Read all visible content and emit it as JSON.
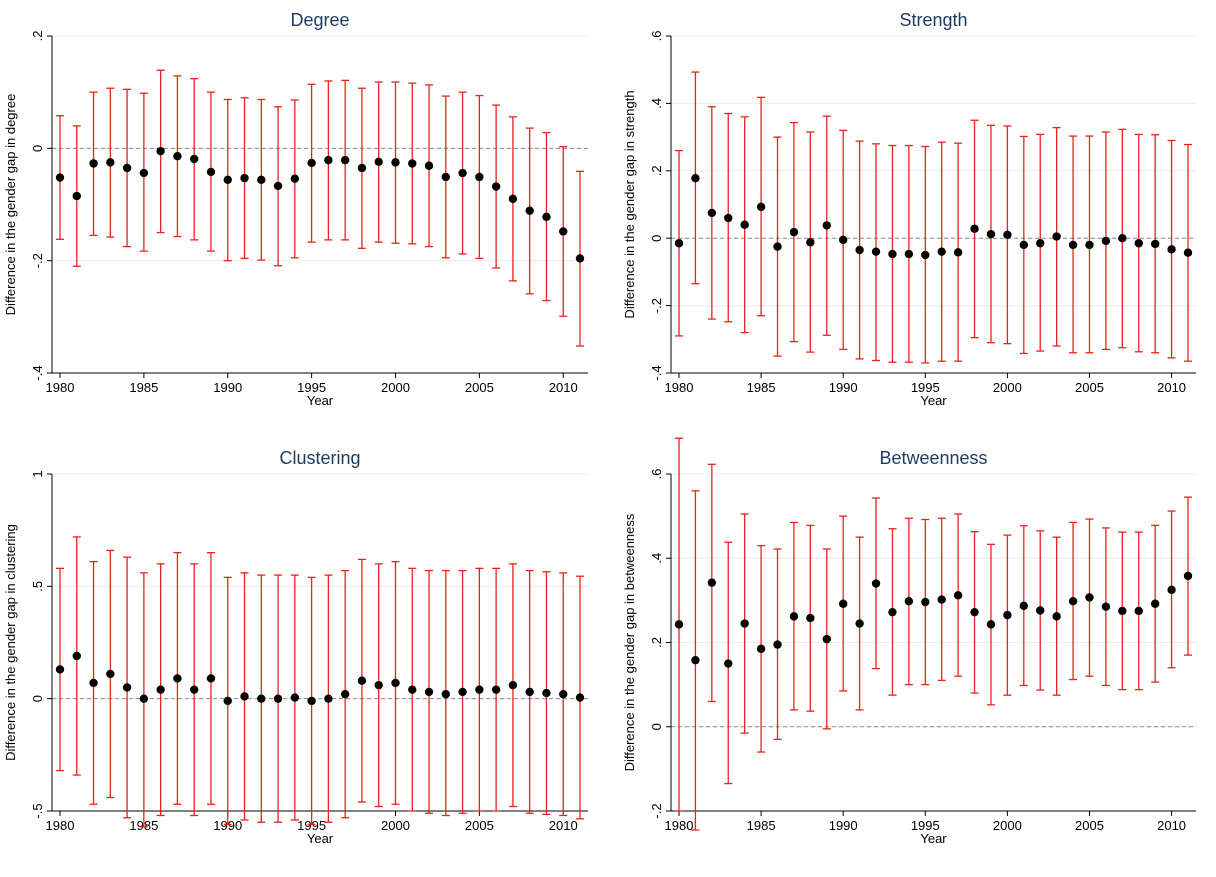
{
  "colors": {
    "ci": "#e8231b",
    "point": "#000000",
    "grid": "#ececec",
    "zero_line": "#8c8c8c",
    "title": "#1e3a5f"
  },
  "chart_data": [
    {
      "type": "scatter",
      "title": "Degree",
      "xlabel": "Year",
      "ylabel": "Difference in the gender gap in degree",
      "xlim": [
        1980,
        2011
      ],
      "ylim": [
        -0.4,
        0.2
      ],
      "xticks": [
        1980,
        1985,
        1990,
        1995,
        2000,
        2005,
        2010
      ],
      "yticks": [
        -0.4,
        -0.2,
        0,
        0.2
      ],
      "ytick_labels": [
        "-.4",
        "-.2",
        "0",
        ".2"
      ],
      "reference_line": 0,
      "grid": true,
      "error_bars": "confidence interval",
      "x": [
        1980,
        1981,
        1982,
        1983,
        1984,
        1985,
        1986,
        1987,
        1988,
        1989,
        1990,
        1991,
        1992,
        1993,
        1994,
        1995,
        1996,
        1997,
        1998,
        1999,
        2000,
        2001,
        2002,
        2003,
        2004,
        2005,
        2006,
        2007,
        2008,
        2009,
        2010,
        2011
      ],
      "y": [
        -0.052,
        -0.085,
        -0.027,
        -0.025,
        -0.035,
        -0.044,
        -0.005,
        -0.014,
        -0.019,
        -0.042,
        -0.056,
        -0.053,
        -0.056,
        -0.067,
        -0.054,
        -0.026,
        -0.021,
        -0.021,
        -0.035,
        -0.024,
        -0.025,
        -0.027,
        -0.031,
        -0.051,
        -0.044,
        -0.051,
        -0.068,
        -0.09,
        -0.111,
        -0.122,
        -0.148,
        -0.196
      ],
      "lower": [
        -0.162,
        -0.21,
        -0.155,
        -0.158,
        -0.175,
        -0.183,
        -0.15,
        -0.157,
        -0.163,
        -0.183,
        -0.2,
        -0.196,
        -0.199,
        -0.209,
        -0.195,
        -0.167,
        -0.163,
        -0.163,
        -0.178,
        -0.167,
        -0.169,
        -0.17,
        -0.175,
        -0.195,
        -0.188,
        -0.196,
        -0.213,
        -0.236,
        -0.259,
        -0.271,
        -0.299,
        -0.352
      ],
      "upper": [
        0.058,
        0.04,
        0.1,
        0.107,
        0.105,
        0.098,
        0.139,
        0.129,
        0.124,
        0.1,
        0.087,
        0.09,
        0.087,
        0.074,
        0.086,
        0.114,
        0.12,
        0.121,
        0.107,
        0.118,
        0.118,
        0.116,
        0.113,
        0.093,
        0.1,
        0.094,
        0.077,
        0.056,
        0.036,
        0.028,
        0.003,
        -0.041
      ]
    },
    {
      "type": "scatter",
      "title": "Strength",
      "xlabel": "Year",
      "ylabel": "Difference in the gender gap in strength",
      "xlim": [
        1980,
        2011
      ],
      "ylim": [
        -0.4,
        0.6
      ],
      "xticks": [
        1980,
        1985,
        1990,
        1995,
        2000,
        2005,
        2010
      ],
      "yticks": [
        -0.4,
        -0.2,
        0,
        0.2,
        0.4,
        0.6
      ],
      "ytick_labels": [
        "-.4",
        "-.2",
        "0",
        ".2",
        ".4",
        ".6"
      ],
      "reference_line": 0,
      "grid": true,
      "error_bars": "confidence interval",
      "x": [
        1980,
        1981,
        1982,
        1983,
        1984,
        1985,
        1986,
        1987,
        1988,
        1989,
        1990,
        1991,
        1992,
        1993,
        1994,
        1995,
        1996,
        1997,
        1998,
        1999,
        2000,
        2001,
        2002,
        2003,
        2004,
        2005,
        2006,
        2007,
        2008,
        2009,
        2010,
        2011
      ],
      "y": [
        -0.015,
        0.178,
        0.075,
        0.06,
        0.04,
        0.093,
        -0.025,
        0.018,
        -0.012,
        0.038,
        -0.005,
        -0.035,
        -0.04,
        -0.047,
        -0.047,
        -0.05,
        -0.04,
        -0.042,
        0.028,
        0.012,
        0.01,
        -0.02,
        -0.015,
        0.005,
        -0.02,
        -0.02,
        -0.008,
        0.0,
        -0.015,
        -0.017,
        -0.033,
        -0.043
      ],
      "lower": [
        -0.29,
        -0.135,
        -0.24,
        -0.248,
        -0.28,
        -0.23,
        -0.35,
        -0.307,
        -0.338,
        -0.288,
        -0.33,
        -0.358,
        -0.363,
        -0.368,
        -0.368,
        -0.37,
        -0.365,
        -0.365,
        -0.295,
        -0.31,
        -0.313,
        -0.342,
        -0.335,
        -0.32,
        -0.34,
        -0.34,
        -0.33,
        -0.325,
        -0.337,
        -0.34,
        -0.355,
        -0.365
      ],
      "upper": [
        0.26,
        0.493,
        0.39,
        0.37,
        0.36,
        0.418,
        0.3,
        0.343,
        0.315,
        0.362,
        0.32,
        0.288,
        0.28,
        0.275,
        0.275,
        0.272,
        0.285,
        0.282,
        0.35,
        0.335,
        0.333,
        0.302,
        0.308,
        0.328,
        0.303,
        0.303,
        0.315,
        0.323,
        0.308,
        0.307,
        0.29,
        0.278
      ]
    },
    {
      "type": "scatter",
      "title": "Clustering",
      "xlabel": "Year",
      "ylabel": "Difference in the gender gap in clustering",
      "xlim": [
        1980,
        2011
      ],
      "ylim": [
        -0.5,
        1
      ],
      "xticks": [
        1980,
        1985,
        1990,
        1995,
        2000,
        2005,
        2010
      ],
      "yticks": [
        -0.5,
        0,
        0.5,
        1
      ],
      "ytick_labels": [
        "-.5",
        "0",
        ".5",
        "1"
      ],
      "reference_line": 0,
      "grid": true,
      "error_bars": "confidence interval",
      "x": [
        1980,
        1981,
        1982,
        1983,
        1984,
        1985,
        1986,
        1987,
        1988,
        1989,
        1990,
        1991,
        1992,
        1993,
        1994,
        1995,
        1996,
        1997,
        1998,
        1999,
        2000,
        2001,
        2002,
        2003,
        2004,
        2005,
        2006,
        2007,
        2008,
        2009,
        2010,
        2011
      ],
      "y": [
        0.13,
        0.19,
        0.07,
        0.11,
        0.05,
        0.0,
        0.04,
        0.09,
        0.04,
        0.09,
        -0.01,
        0.01,
        0.0,
        0.0,
        0.005,
        -0.01,
        0.0,
        0.02,
        0.08,
        0.06,
        0.07,
        0.04,
        0.03,
        0.02,
        0.03,
        0.04,
        0.04,
        0.06,
        0.03,
        0.025,
        0.02,
        0.005
      ],
      "lower": [
        -0.32,
        -0.34,
        -0.47,
        -0.44,
        -0.53,
        -0.57,
        -0.52,
        -0.47,
        -0.52,
        -0.47,
        -0.56,
        -0.54,
        -0.55,
        -0.55,
        -0.54,
        -0.56,
        -0.55,
        -0.53,
        -0.46,
        -0.48,
        -0.47,
        -0.5,
        -0.51,
        -0.52,
        -0.51,
        -0.5,
        -0.5,
        -0.48,
        -0.51,
        -0.515,
        -0.52,
        -0.535
      ],
      "upper": [
        0.58,
        0.72,
        0.61,
        0.66,
        0.63,
        0.56,
        0.6,
        0.65,
        0.6,
        0.65,
        0.54,
        0.56,
        0.55,
        0.55,
        0.55,
        0.54,
        0.55,
        0.57,
        0.62,
        0.6,
        0.61,
        0.58,
        0.57,
        0.57,
        0.57,
        0.58,
        0.58,
        0.6,
        0.57,
        0.565,
        0.56,
        0.545
      ]
    },
    {
      "type": "scatter",
      "title": "Betweenness",
      "xlabel": "Year",
      "ylabel": "Difference in the gender gap in betweenness",
      "xlim": [
        1980,
        2011
      ],
      "ylim": [
        -0.2,
        0.6
      ],
      "xticks": [
        1980,
        1985,
        1990,
        1995,
        2000,
        2005,
        2010
      ],
      "yticks": [
        -0.2,
        0,
        0.2,
        0.4,
        0.6
      ],
      "ytick_labels": [
        "-.2",
        "0",
        ".2",
        ".4",
        ".6"
      ],
      "reference_line": 0,
      "grid": true,
      "error_bars": "confidence interval",
      "x": [
        1980,
        1981,
        1982,
        1983,
        1984,
        1985,
        1986,
        1987,
        1988,
        1989,
        1990,
        1991,
        1992,
        1993,
        1994,
        1995,
        1996,
        1997,
        1998,
        1999,
        2000,
        2001,
        2002,
        2003,
        2004,
        2005,
        2006,
        2007,
        2008,
        2009,
        2010,
        2011
      ],
      "y": [
        0.243,
        0.158,
        0.342,
        0.15,
        0.245,
        0.185,
        0.195,
        0.262,
        0.258,
        0.208,
        0.292,
        0.245,
        0.34,
        0.272,
        0.298,
        0.296,
        0.302,
        0.312,
        0.272,
        0.243,
        0.265,
        0.287,
        0.276,
        0.262,
        0.298,
        0.307,
        0.285,
        0.275,
        0.275,
        0.292,
        0.325,
        0.358
      ],
      "lower": [
        -0.2,
        -0.245,
        0.06,
        -0.135,
        -0.015,
        -0.06,
        -0.03,
        0.04,
        0.037,
        -0.005,
        0.085,
        0.04,
        0.138,
        0.075,
        0.1,
        0.1,
        0.11,
        0.12,
        0.08,
        0.052,
        0.075,
        0.098,
        0.087,
        0.075,
        0.112,
        0.12,
        0.098,
        0.088,
        0.088,
        0.106,
        0.14,
        0.17
      ],
      "upper": [
        0.685,
        0.56,
        0.623,
        0.438,
        0.505,
        0.43,
        0.422,
        0.485,
        0.478,
        0.422,
        0.5,
        0.45,
        0.543,
        0.47,
        0.495,
        0.492,
        0.495,
        0.505,
        0.463,
        0.433,
        0.455,
        0.477,
        0.465,
        0.45,
        0.485,
        0.493,
        0.472,
        0.462,
        0.462,
        0.478,
        0.512,
        0.545
      ]
    }
  ]
}
